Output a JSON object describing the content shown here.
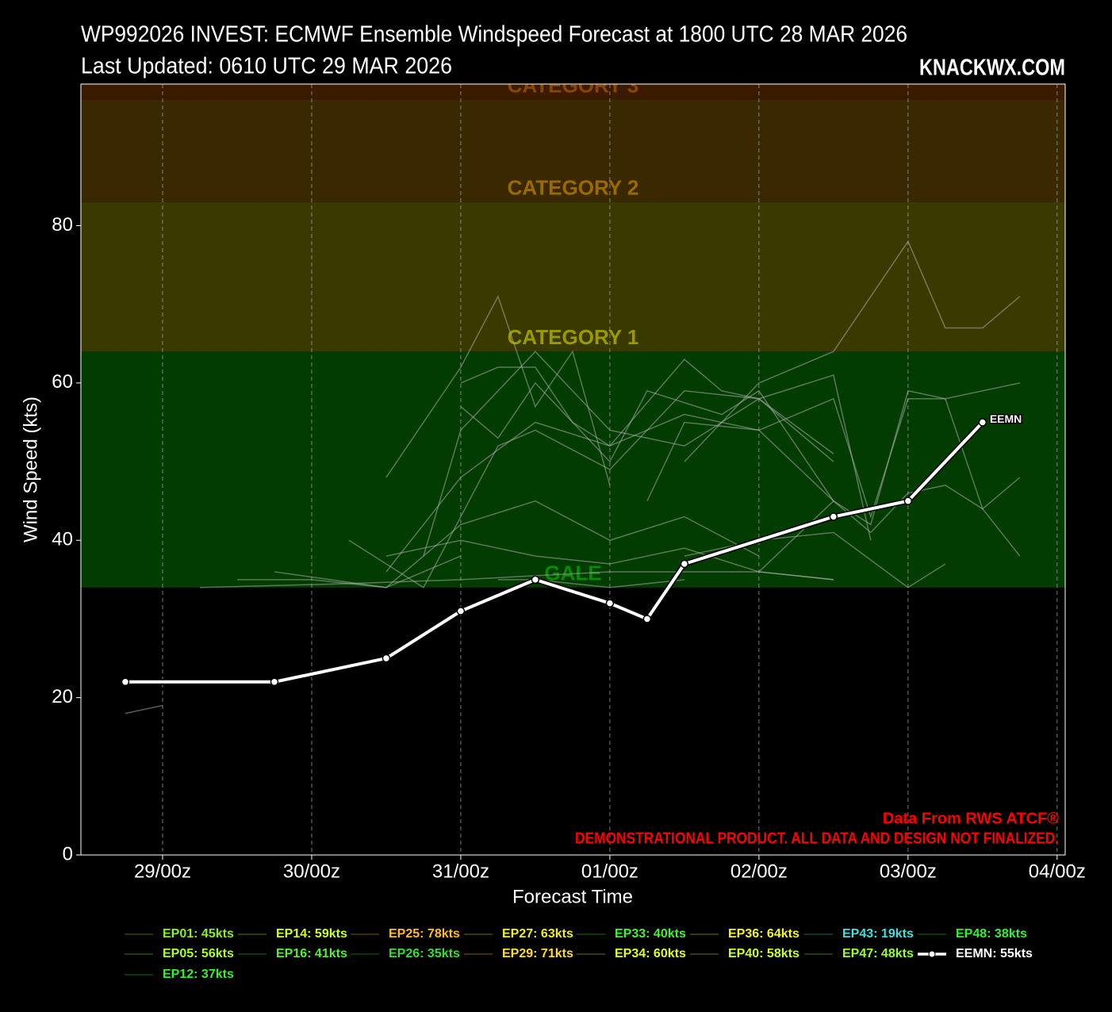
{
  "chart_data": {
    "type": "line",
    "title": "WP992026 INVEST: ECMWF Ensemble Windspeed Forecast at 1800 UTC 28 MAR 2026",
    "subtitle": "Last Updated: 0610 UTC 29 MAR 2026",
    "site": "KNACKWX.COM",
    "x_label": "Forecast Time",
    "y_label": "Wind Speed (kts)",
    "xlim": [
      -13.15,
      145.3
    ],
    "xticks": [
      {
        "value": 0,
        "label": "29/00z"
      },
      {
        "value": 24,
        "label": "30/00z"
      },
      {
        "value": 48,
        "label": "31/00z"
      },
      {
        "value": 72,
        "label": "01/00z"
      },
      {
        "value": 96,
        "label": "02/00z"
      },
      {
        "value": 120,
        "label": "03/00z"
      },
      {
        "value": 144,
        "label": "04/00z"
      }
    ],
    "ylim": [
      0,
      98
    ],
    "yticks": [
      0,
      20,
      40,
      60,
      80
    ],
    "grid": "x",
    "background": "#000000",
    "member_line_color": "#b4b4b4",
    "bands": [
      {
        "label": "GALE",
        "low": 34,
        "high": 64,
        "color": "#023c00",
        "label_color": "#0a8a0a"
      },
      {
        "label": "CATEGORY 1",
        "low": 64,
        "high": 83,
        "color": "#3a3a00",
        "label_color": "#9a9a00"
      },
      {
        "label": "CATEGORY 2",
        "low": 83,
        "high": 96,
        "color": "#3a2900",
        "label_color": "#9a6a00"
      },
      {
        "label": "CATEGORY 3",
        "low": 96,
        "high": 115,
        "color": "#3a1b00",
        "label_color": "#8a4500"
      }
    ],
    "annotations": [
      "Data From RWS ATCF®",
      "DEMONSTRATIONAL PRODUCT. ALL DATA AND DESIGN NOT FINALIZED."
    ],
    "end_label": "EEMN",
    "series": [
      {
        "name": "EP01: 45kts",
        "color": "#88ee22",
        "x": [
          18,
          36,
          48,
          60,
          72,
          84,
          96
        ],
        "values": [
          36,
          34,
          42,
          45,
          40,
          43,
          38
        ]
      },
      {
        "name": "EP05: 56kts",
        "color": "#aaff22",
        "x": [
          36,
          48,
          60,
          72,
          84,
          96,
          108
        ],
        "values": [
          36,
          48,
          55,
          52,
          56,
          54,
          45
        ]
      },
      {
        "name": "EP12: 37kts",
        "color": "#33ee33",
        "x": [
          6,
          30,
          48,
          72,
          96,
          108
        ],
        "values": [
          34,
          34.5,
          35,
          36,
          36,
          35
        ]
      },
      {
        "name": "EP14: 59kts",
        "color": "#ccff22",
        "x": [
          30,
          42,
          54,
          60,
          72,
          84,
          96,
          108
        ],
        "values": [
          40,
          34,
          52,
          54,
          49,
          59,
          58,
          51
        ]
      },
      {
        "name": "EP16: 41kts",
        "color": "#55ee33",
        "x": [
          84,
          96,
          108,
          120,
          126
        ],
        "values": [
          38,
          40,
          41,
          34,
          37
        ]
      },
      {
        "name": "EP25: 78kts",
        "color": "#ffbb22",
        "x": [
          84,
          96,
          108,
          120,
          126,
          132,
          138
        ],
        "values": [
          50,
          60,
          64,
          78,
          67,
          67,
          71
        ]
      },
      {
        "name": "EP26: 35kts",
        "color": "#33dd33",
        "x": [
          54,
          60,
          72,
          84
        ],
        "values": [
          35,
          35,
          34,
          35
        ]
      },
      {
        "name": "EP27: 63kts",
        "color": "#eeee22",
        "x": [
          48,
          54,
          60,
          66,
          72,
          84,
          90,
          96,
          108
        ],
        "values": [
          60,
          62,
          62,
          55,
          52,
          63,
          59,
          58,
          50
        ]
      },
      {
        "name": "EP29: 71kts",
        "color": "#ffdd22",
        "x": [
          36,
          48,
          54,
          60,
          66,
          72
        ],
        "values": [
          48,
          62,
          71,
          57,
          64,
          47
        ]
      },
      {
        "name": "EP33: 40kts",
        "color": "#44ee33",
        "x": [
          36,
          48,
          60,
          72,
          84,
          96,
          108
        ],
        "values": [
          38,
          40,
          38,
          37,
          39,
          36,
          35
        ]
      },
      {
        "name": "EP34: 60kts",
        "color": "#ddff22",
        "x": [
          48,
          54,
          60,
          72,
          78,
          90,
          96,
          108,
          114,
          120,
          126,
          138
        ],
        "values": [
          57,
          53,
          60,
          50,
          59,
          56,
          59,
          45,
          42,
          59,
          58,
          60
        ]
      },
      {
        "name": "EP36: 64kts",
        "color": "#f4f422",
        "x": [
          42,
          48,
          60,
          72,
          84,
          90,
          96,
          108,
          114
        ],
        "values": [
          38,
          54,
          64,
          54,
          52,
          55,
          58,
          61,
          40
        ]
      },
      {
        "name": "EP40: 58kts",
        "color": "#ccff22",
        "x": [
          78,
          84,
          96,
          108,
          114,
          120,
          126,
          132,
          138
        ],
        "values": [
          45,
          55,
          54,
          58,
          43,
          58,
          58,
          44,
          48
        ]
      },
      {
        "name": "EP43: 19kts",
        "color": "#44dddd",
        "x": [
          -6,
          0
        ],
        "values": [
          18,
          19
        ]
      },
      {
        "name": "EP47: 48kts",
        "color": "#99ff22",
        "x": [
          96,
          108,
          114,
          120,
          126,
          132,
          138
        ],
        "values": [
          36,
          45,
          41,
          46,
          47,
          44,
          38
        ]
      },
      {
        "name": "EP48: 38kts",
        "color": "#33ee33",
        "x": [
          12,
          24,
          36,
          48
        ],
        "values": [
          35,
          35,
          34,
          38
        ]
      },
      {
        "name": "EEMN: 55kts",
        "color": "#ffffff",
        "mean": true,
        "x": [
          -6,
          18,
          36,
          48,
          60,
          72,
          78,
          84,
          108,
          120,
          132
        ],
        "values": [
          22,
          22,
          25,
          31,
          35,
          32,
          30,
          37,
          43,
          45,
          55
        ]
      }
    ]
  }
}
